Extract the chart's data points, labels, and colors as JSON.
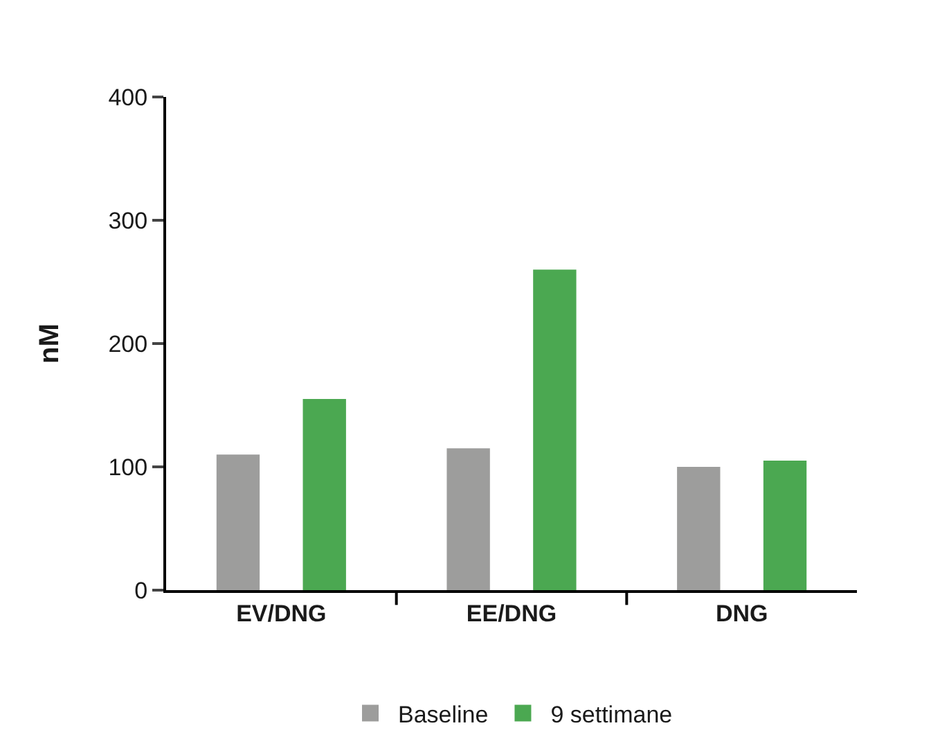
{
  "chart_data": {
    "type": "bar",
    "ylabel": "nM",
    "categories": [
      "EV/DNG",
      "EE/DNG",
      "DNG"
    ],
    "series": [
      {
        "name": "Baseline",
        "color": "#9d9d9c",
        "values": [
          110,
          115,
          100
        ]
      },
      {
        "name": "9 settimane",
        "color": "#4ba851",
        "values": [
          155,
          260,
          105
        ]
      }
    ],
    "ylim": [
      0,
      400
    ],
    "yticks": [
      0,
      100,
      200,
      300,
      400
    ],
    "legend": "bottom"
  }
}
